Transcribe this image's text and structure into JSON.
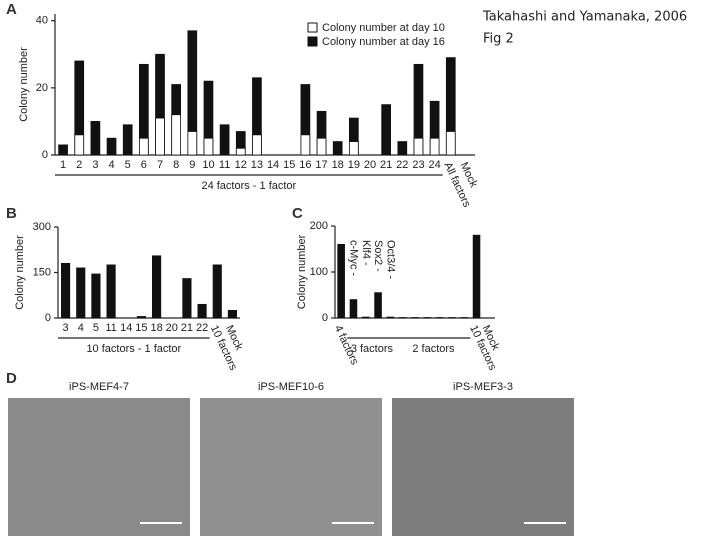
{
  "caption": [
    "Takahashi and Yamanaka, 2006",
    "Fig 2"
  ],
  "panels": [
    "A",
    "B",
    "C",
    "D"
  ],
  "chart_data": [
    {
      "type": "bar",
      "y_label": "Colony number",
      "categories": [
        "1",
        "2",
        "3",
        "4",
        "5",
        "6",
        "7",
        "8",
        "9",
        "10",
        "11",
        "12",
        "13",
        "14",
        "15",
        "16",
        "17",
        "18",
        "19",
        "20",
        "21",
        "22",
        "23",
        "24",
        "All factors",
        "Mock"
      ],
      "series": [
        {
          "name": "Colony number at day 16",
          "color": "#111111",
          "values": [
            3,
            28,
            10,
            5,
            9,
            27,
            30,
            21,
            37,
            22,
            9,
            7,
            23,
            0,
            0,
            21,
            13,
            4,
            11,
            0,
            15,
            4,
            27,
            16,
            29,
            0
          ]
        },
        {
          "name": "Colony number at day 10",
          "color": "#ffffff",
          "values": [
            0,
            6,
            0,
            0,
            0,
            5,
            11,
            12,
            7,
            5,
            0,
            2,
            6,
            0,
            0,
            6,
            5,
            0,
            4,
            0,
            0,
            0,
            5,
            5,
            7,
            0
          ]
        }
      ],
      "ylim": [
        0,
        42
      ],
      "yticks": [
        0,
        20,
        40
      ],
      "annotations": [
        "24 factors - 1 factor"
      ]
    },
    {
      "type": "bar",
      "y_label": "Colony number",
      "categories": [
        "3",
        "4",
        "5",
        "11",
        "14",
        "15",
        "18",
        "20",
        "21",
        "22",
        "10 factors",
        "Mock"
      ],
      "values": [
        180,
        165,
        145,
        175,
        0,
        5,
        205,
        0,
        130,
        45,
        175,
        25
      ],
      "color": "#111111",
      "ylim": [
        0,
        300
      ],
      "yticks": [
        0,
        150,
        300
      ],
      "annotations": [
        "10 factors - 1 factor"
      ]
    },
    {
      "type": "bar",
      "y_label": "Colony number",
      "categories": [
        "4 factors",
        "c-Myc -",
        "Klf4 -",
        "Sox2 -",
        "Oct3/4 -",
        null,
        null,
        null,
        null,
        null,
        null,
        "10 factors",
        "Mock"
      ],
      "values": [
        160,
        40,
        2,
        55,
        2,
        1,
        1,
        1,
        1,
        1,
        1,
        180,
        0
      ],
      "color": "#111111",
      "ylim": [
        0,
        200
      ],
      "yticks": [
        0,
        100,
        200
      ],
      "annotations": [
        "3 factors",
        "2 factors"
      ]
    }
  ],
  "photo_labels": [
    "iPS-MEF4-7",
    "iPS-MEF10-6",
    "iPS-MEF3-3"
  ]
}
